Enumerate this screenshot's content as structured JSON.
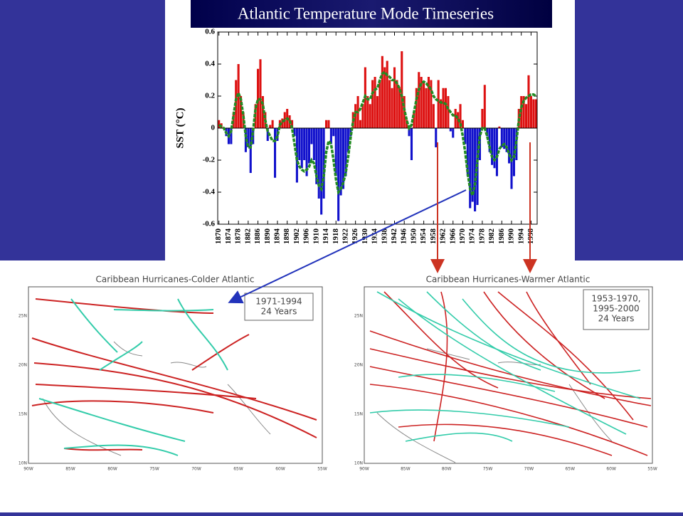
{
  "chart_data": {
    "type": "bar",
    "title": "Atlantic Temperature Mode Timeseries",
    "y_label": "SST (°C)",
    "x": [
      1870,
      1871,
      1872,
      1873,
      1874,
      1875,
      1876,
      1877,
      1878,
      1879,
      1880,
      1881,
      1882,
      1883,
      1884,
      1885,
      1886,
      1887,
      1888,
      1889,
      1890,
      1891,
      1892,
      1893,
      1894,
      1895,
      1896,
      1897,
      1898,
      1899,
      1900,
      1901,
      1902,
      1903,
      1904,
      1905,
      1906,
      1907,
      1908,
      1909,
      1910,
      1911,
      1912,
      1913,
      1914,
      1915,
      1916,
      1917,
      1918,
      1919,
      1920,
      1921,
      1922,
      1923,
      1924,
      1925,
      1926,
      1927,
      1928,
      1929,
      1930,
      1931,
      1932,
      1933,
      1934,
      1935,
      1936,
      1937,
      1938,
      1939,
      1940,
      1941,
      1942,
      1943,
      1944,
      1945,
      1946,
      1947,
      1948,
      1949,
      1950,
      1951,
      1952,
      1953,
      1954,
      1955,
      1956,
      1957,
      1958,
      1959,
      1960,
      1961,
      1962,
      1963,
      1964,
      1965,
      1966,
      1967,
      1968,
      1969,
      1970,
      1971,
      1972,
      1973,
      1974,
      1975,
      1976,
      1977,
      1978,
      1979,
      1980,
      1981,
      1982,
      1983,
      1984,
      1985,
      1986,
      1987,
      1988,
      1989,
      1990,
      1991,
      1992,
      1993,
      1994,
      1995,
      1996,
      1997,
      1998,
      1999,
      2000
    ],
    "values": [
      0.05,
      0.03,
      0.0,
      -0.05,
      -0.1,
      -0.1,
      0.1,
      0.3,
      0.4,
      0.2,
      0.1,
      -0.15,
      -0.12,
      -0.28,
      -0.1,
      0.15,
      0.37,
      0.43,
      0.2,
      0.1,
      -0.08,
      0.02,
      0.05,
      -0.31,
      -0.08,
      0.05,
      0.06,
      0.1,
      0.12,
      0.08,
      0.05,
      -0.05,
      -0.34,
      -0.2,
      -0.25,
      -0.2,
      -0.3,
      -0.22,
      -0.1,
      -0.2,
      -0.35,
      -0.44,
      -0.54,
      -0.44,
      0.05,
      0.05,
      -0.1,
      -0.05,
      -0.3,
      -0.58,
      -0.42,
      -0.38,
      -0.3,
      -0.15,
      -0.05,
      0.1,
      0.15,
      0.2,
      0.05,
      0.15,
      0.38,
      0.2,
      0.15,
      0.3,
      0.32,
      0.2,
      0.3,
      0.45,
      0.38,
      0.42,
      0.3,
      0.25,
      0.38,
      0.3,
      0.25,
      0.48,
      0.2,
      0.05,
      -0.05,
      -0.2,
      0.1,
      0.25,
      0.35,
      0.32,
      0.28,
      0.25,
      0.32,
      0.3,
      0.15,
      -0.12,
      0.3,
      0.18,
      0.25,
      0.25,
      0.2,
      -0.02,
      -0.06,
      0.12,
      0.1,
      0.15,
      0.05,
      -0.1,
      -0.3,
      -0.5,
      -0.46,
      -0.52,
      -0.48,
      -0.2,
      0.12,
      0.27,
      -0.05,
      -0.15,
      -0.23,
      -0.25,
      -0.3,
      0.01,
      -0.12,
      -0.13,
      -0.15,
      -0.22,
      -0.38,
      -0.3,
      -0.2,
      0.12,
      0.2,
      0.2,
      0.15,
      0.33,
      0.2,
      0.18,
      0.18
    ],
    "positive_color": "#dd1111",
    "negative_color": "#1111cc",
    "line": {
      "color": "#228b22",
      "values": [
        0.02,
        0.01,
        0,
        -0.03,
        -0.05,
        -0.02,
        0.08,
        0.18,
        0.22,
        0.18,
        0.08,
        -0.05,
        -0.12,
        -0.12,
        -0.02,
        0.12,
        0.18,
        0.18,
        0.15,
        0.05,
        -0.02,
        -0.05,
        -0.08,
        -0.08,
        -0.05,
        0.02,
        0.04,
        0.05,
        0.06,
        0.05,
        0.0,
        -0.1,
        -0.2,
        -0.24,
        -0.26,
        -0.27,
        -0.26,
        -0.24,
        -0.2,
        -0.22,
        -0.3,
        -0.36,
        -0.38,
        -0.3,
        -0.15,
        -0.08,
        -0.1,
        -0.2,
        -0.32,
        -0.4,
        -0.38,
        -0.34,
        -0.28,
        -0.18,
        -0.06,
        0.04,
        0.1,
        0.1,
        0.12,
        0.16,
        0.2,
        0.18,
        0.18,
        0.22,
        0.24,
        0.25,
        0.3,
        0.34,
        0.35,
        0.33,
        0.32,
        0.3,
        0.3,
        0.28,
        0.25,
        0.2,
        0.12,
        0.05,
        0.0,
        0.02,
        0.1,
        0.18,
        0.24,
        0.28,
        0.29,
        0.28,
        0.26,
        0.24,
        0.2,
        0.18,
        0.17,
        0.16,
        0.16,
        0.15,
        0.12,
        0.1,
        0.08,
        0.08,
        0.06,
        0.03,
        -0.05,
        -0.15,
        -0.28,
        -0.38,
        -0.42,
        -0.35,
        -0.2,
        -0.05,
        0.0,
        0.0,
        -0.05,
        -0.12,
        -0.18,
        -0.2,
        -0.18,
        -0.13,
        -0.11,
        -0.1,
        -0.12,
        -0.16,
        -0.2,
        -0.18,
        -0.08,
        0.05,
        0.13,
        0.17,
        0.19,
        0.2,
        0.21,
        0.21,
        0.2
      ]
    },
    "xlim": [
      1869.5,
      2000.5
    ],
    "xticks": [
      1870,
      1874,
      1878,
      1882,
      1886,
      1890,
      1894,
      1898,
      1902,
      1906,
      1910,
      1914,
      1918,
      1922,
      1926,
      1930,
      1934,
      1938,
      1942,
      1946,
      1950,
      1954,
      1958,
      1962,
      1966,
      1970,
      1974,
      1978,
      1982,
      1986,
      1990,
      1994,
      1998
    ],
    "ylim": [
      -0.6,
      0.6
    ],
    "yticks": [
      0.6,
      0.4,
      0.2,
      0,
      -0.2,
      -0.4,
      -0.6
    ]
  },
  "maps": [
    {
      "title": "Caribbean Hurricanes-Colder Atlantic",
      "inset": [
        "1971-1994",
        "24 Years"
      ],
      "lat_labels": [
        "25N",
        "20N",
        "15N",
        "10N"
      ],
      "lon_labels": [
        "90W",
        "85W",
        "80W",
        "75W",
        "70W",
        "65W",
        "60W",
        "55W"
      ]
    },
    {
      "title": "Caribbean Hurricanes-Warmer Atlantic",
      "inset": [
        "1953-1970,",
        "1995-2000",
        "24 Years"
      ],
      "lat_labels": [
        "25N",
        "20N",
        "15N",
        "10N"
      ],
      "lon_labels": [
        "90W",
        "85W",
        "80W",
        "75W",
        "70W",
        "65W",
        "60W",
        "55W"
      ]
    }
  ]
}
